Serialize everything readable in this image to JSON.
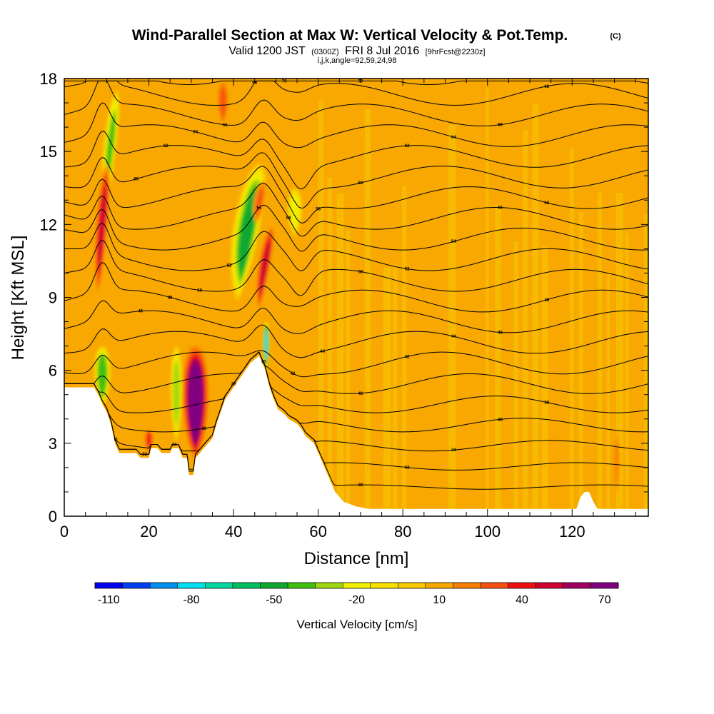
{
  "header": {
    "title": "Wind-Parallel Section at Max W: Vertical Velocity & Pot.Temp.",
    "copyright": "(C)",
    "valid_prefix": "Valid 1200 JST",
    "valid_utc": "(0300Z)",
    "valid_date": "FRI 8 Jul 2016",
    "forecast": "[9hrFcst@2230z]",
    "indices": "i,j,k,angle=92,59,24,98"
  },
  "chart_data": {
    "type": "heatmap",
    "title": "Wind-Parallel Section at Max W: Vertical Velocity & Pot.Temp.",
    "xlabel": "Distance [nm]",
    "ylabel": "Height [Kft MSL]",
    "xlim": [
      0,
      138
    ],
    "ylim": [
      0,
      18
    ],
    "x_ticks": [
      0,
      20,
      40,
      60,
      80,
      100,
      120
    ],
    "y_ticks": [
      0,
      3,
      6,
      9,
      12,
      15,
      18
    ],
    "grid": false,
    "background_value": 5,
    "updrafts": [
      {
        "x": 9.0,
        "xw": 1.3,
        "y_top": 14.5,
        "y_bot": 9.0,
        "peak": 45,
        "tilt": 0.2
      },
      {
        "x": 31.0,
        "xw": 2.8,
        "y_top": 7.0,
        "y_bot": 2.3,
        "peak": 80,
        "tilt": 0.0
      },
      {
        "x": 20.0,
        "xw": 1.0,
        "y_top": 3.6,
        "y_bot": 2.6,
        "peak": 38,
        "tilt": 0.0
      },
      {
        "x": 37.5,
        "xw": 1.4,
        "y_top": 18.0,
        "y_bot": 16.0,
        "peak": 25,
        "tilt": 0.0
      },
      {
        "x": 47.5,
        "xw": 1.3,
        "y_top": 12.0,
        "y_bot": 8.4,
        "peak": 48,
        "tilt": 0.45
      },
      {
        "x": 46.2,
        "xw": 1.2,
        "y_top": 13.8,
        "y_bot": 12.0,
        "peak": 28,
        "tilt": 0.45
      },
      {
        "x": 130.5,
        "xw": 0.7,
        "y_top": 3.5,
        "y_bot": 0.8,
        "peak": 22,
        "tilt": 0.0
      }
    ],
    "downdrafts": [
      {
        "x": 11.0,
        "xw": 1.4,
        "y_top": 17.5,
        "y_bot": 12.5,
        "peak": -38,
        "tilt": 0.28
      },
      {
        "x": 9.0,
        "xw": 1.8,
        "y_top": 7.0,
        "y_bot": 4.5,
        "peak": -45,
        "tilt": 0.0
      },
      {
        "x": 26.5,
        "xw": 1.3,
        "y_top": 7.0,
        "y_bot": 3.0,
        "peak": -32,
        "tilt": 0.0
      },
      {
        "x": 43.5,
        "xw": 3.0,
        "y_top": 14.5,
        "y_bot": 8.8,
        "peak": -55,
        "tilt": 0.45
      },
      {
        "x": 47.7,
        "xw": 0.7,
        "y_top": 8.0,
        "y_bot": 6.0,
        "peak": -85,
        "tilt": 0.0
      },
      {
        "x": 54.5,
        "xw": 1.6,
        "y_top": 13.5,
        "y_bot": 11.5,
        "peak": -22,
        "tilt": 0.0
      }
    ],
    "terrain_nm_kft": [
      [
        0,
        5.3
      ],
      [
        3,
        5.3
      ],
      [
        7,
        5.3
      ],
      [
        8,
        5.0
      ],
      [
        9,
        4.6
      ],
      [
        10,
        4.3
      ],
      [
        11,
        3.8
      ],
      [
        12,
        3.0
      ],
      [
        13,
        2.6
      ],
      [
        17,
        2.6
      ],
      [
        18,
        2.4
      ],
      [
        20,
        2.4
      ],
      [
        20.5,
        2.8
      ],
      [
        22,
        2.8
      ],
      [
        23,
        2.6
      ],
      [
        25,
        2.6
      ],
      [
        25.5,
        2.8
      ],
      [
        27,
        2.8
      ],
      [
        28,
        2.4
      ],
      [
        29,
        2.4
      ],
      [
        29.5,
        1.7
      ],
      [
        30.5,
        1.7
      ],
      [
        31,
        2.4
      ],
      [
        32,
        2.6
      ],
      [
        33,
        2.8
      ],
      [
        35,
        3.2
      ],
      [
        36,
        3.8
      ],
      [
        37,
        4.3
      ],
      [
        38,
        4.8
      ],
      [
        40,
        5.3
      ],
      [
        42,
        5.8
      ],
      [
        44,
        6.3
      ],
      [
        46,
        6.6
      ],
      [
        47.5,
        6.0
      ],
      [
        48.5,
        5.3
      ],
      [
        49.5,
        4.8
      ],
      [
        50.5,
        4.4
      ],
      [
        52,
        4.2
      ],
      [
        53,
        4.0
      ],
      [
        55,
        3.8
      ],
      [
        56,
        3.6
      ],
      [
        57,
        3.3
      ],
      [
        59,
        3.0
      ],
      [
        60,
        2.6
      ],
      [
        61,
        2.2
      ],
      [
        62,
        1.8
      ],
      [
        63,
        1.4
      ],
      [
        64,
        1.0
      ],
      [
        65,
        0.8
      ],
      [
        66,
        0.6
      ],
      [
        69,
        0.4
      ],
      [
        72,
        0.3
      ],
      [
        121,
        0.3
      ],
      [
        122,
        0.8
      ],
      [
        123,
        1.0
      ],
      [
        124,
        1.0
      ],
      [
        125,
        0.6
      ],
      [
        126,
        0.3
      ],
      [
        138,
        0.3
      ]
    ],
    "theta_levels": [
      30,
      32,
      34,
      36,
      38,
      40,
      42,
      44,
      46,
      48,
      50,
      52,
      54,
      56,
      58,
      60,
      62,
      64,
      66,
      68,
      70
    ],
    "contour_label_values": [
      "30",
      "32",
      "34",
      "36",
      "38",
      "40",
      "42",
      "44",
      "46",
      "48",
      "50",
      "52",
      "54",
      "56",
      "58",
      "60",
      "62",
      "64",
      "66",
      "68",
      "70"
    ],
    "colorbar": {
      "title": "Vertical Velocity [cm/s]",
      "min": -115,
      "step": 10,
      "tick_labels": [
        "-110",
        "-80",
        "-50",
        "-20",
        "10",
        "40",
        "70"
      ],
      "colors": [
        "#0000f0",
        "#0040f0",
        "#0090f0",
        "#00e0f0",
        "#00d8a0",
        "#00c060",
        "#10a830",
        "#40c010",
        "#a0d810",
        "#f0f000",
        "#f8e000",
        "#f8c800",
        "#f8a800",
        "#f88000",
        "#f85010",
        "#f01010",
        "#d00030",
        "#a00060",
        "#800080"
      ]
    },
    "colors": {
      "terrain": "#ffffff",
      "contour": "#000000"
    }
  }
}
